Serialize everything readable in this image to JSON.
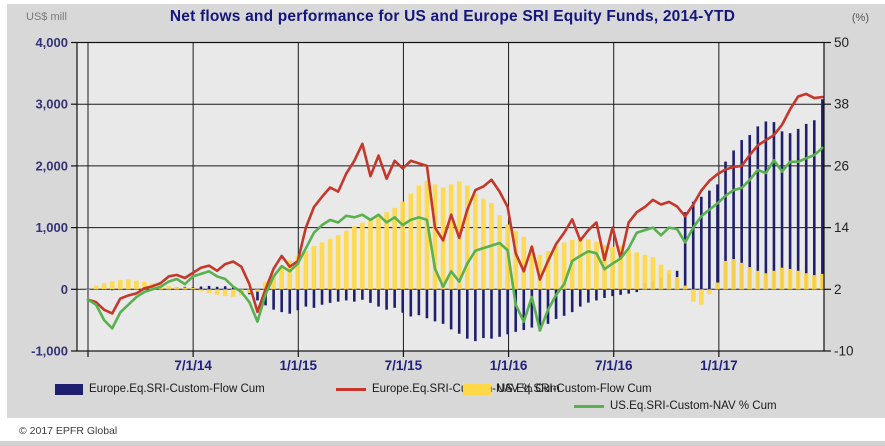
{
  "title": "Net flows and performance for US and Europe SRI Equity Funds, 2014-YTD",
  "footer": "© 2017 EPFR Global",
  "left_axis": {
    "unit": "US$ mill",
    "tick_labels": [
      "4,000",
      "3,000",
      "2,000",
      "1,000",
      "0",
      "-1,000"
    ],
    "tick_values": [
      4000,
      3000,
      2000,
      1000,
      0,
      -1000
    ],
    "range": [
      -1000,
      4000
    ],
    "label_color": "#333375"
  },
  "right_axis": {
    "unit": "(%)",
    "tick_labels": [
      "50",
      "38",
      "26",
      "14",
      "2",
      "-10"
    ],
    "tick_values": [
      50,
      38,
      26,
      14,
      2,
      -10
    ],
    "range": [
      -10,
      50
    ],
    "label_color": "#222222"
  },
  "x_axis": {
    "labels": [
      "7/1/14",
      "1/1/15",
      "7/1/15",
      "1/1/16",
      "7/1/16",
      "1/1/17"
    ],
    "label_month_offsets": [
      6,
      12,
      18,
      24,
      30,
      36
    ],
    "gridline_month_offsets": [
      0,
      6,
      12,
      18,
      24,
      30,
      36
    ],
    "label_color": "#1f1f7e"
  },
  "legend": {
    "items": [
      {
        "label": "Europe.Eq.SRI-Custom-Flow Cum",
        "type": "bar",
        "color": "#1f1f70"
      },
      {
        "label": "Europe.Eq.SRI-Custom-NAV % Cum",
        "type": "line",
        "color": "#c5372b"
      },
      {
        "label": "US.Eq.SRI-Custom-Flow Cum",
        "type": "bar",
        "color": "#ffd84a"
      },
      {
        "label": "US.Eq.SRI-Custom-NAV % Cum",
        "type": "line",
        "color": "#58b04e"
      }
    ]
  },
  "colors": {
    "panel_bg": "#d8d8d8",
    "plot_bg": "#e9e9e9",
    "gridline": "#1a1a1a",
    "europe_flow_bar": "#1f1f70",
    "us_flow_bar": "#ffd84a",
    "europe_nav_line": "#c5372b",
    "us_nav_line": "#58b04e",
    "title_text": "#15157e"
  },
  "chart_data": {
    "type": "bar",
    "subtype": "combo-bar-line-dual-axis",
    "title": "Net flows and performance for US and Europe SRI Equity Funds, 2014-YTD",
    "xlabel": "",
    "ylabel_left": "US$ mill",
    "ylabel_right": "(%)",
    "left_ylim": [
      -1000,
      4000
    ],
    "right_ylim": [
      -10,
      50
    ],
    "grid": true,
    "legend_position": "bottom",
    "x_start_date": "1/1/2014",
    "x_end_date": "7/1/2017",
    "x_step_weeks": 2,
    "x_tick_labels": [
      "7/1/14",
      "1/1/15",
      "7/1/15",
      "1/1/16",
      "7/1/16",
      "1/1/17"
    ],
    "series": [
      {
        "name": "Europe.Eq.SRI-Custom-Flow Cum",
        "type": "bar",
        "axis": "left",
        "units": "US$ mill",
        "color": "#1f1f70",
        "values": [
          0,
          5,
          -10,
          -15,
          10,
          15,
          20,
          10,
          25,
          30,
          20,
          35,
          40,
          30,
          45,
          55,
          40,
          50,
          35,
          -30,
          -80,
          -180,
          -260,
          -330,
          -370,
          -395,
          -340,
          -280,
          -300,
          -250,
          -220,
          -200,
          -180,
          -200,
          -170,
          -220,
          -280,
          -330,
          -300,
          -380,
          -440,
          -420,
          -470,
          -520,
          -560,
          -650,
          -720,
          -800,
          -840,
          -790,
          -800,
          -770,
          -730,
          -690,
          -660,
          -620,
          -680,
          -560,
          -480,
          -430,
          -370,
          -280,
          -215,
          -180,
          -140,
          -110,
          -90,
          -70,
          -45,
          100,
          140,
          190,
          250,
          300,
          1250,
          1420,
          1500,
          1600,
          1700,
          2070,
          2250,
          2420,
          2500,
          2640,
          2720,
          2710,
          2560,
          2530,
          2600,
          2680,
          2740,
          3080
        ]
      },
      {
        "name": "Europe.Eq.SRI-Custom-NAV % Cum",
        "type": "line",
        "axis": "right",
        "units": "%",
        "color": "#c5372b",
        "values": [
          0,
          -0.5,
          -2,
          -2.7,
          0.2,
          0.8,
          1.2,
          2.2,
          2.6,
          3.2,
          4.5,
          4.8,
          4.2,
          5.2,
          6.2,
          6.6,
          5.6,
          6.9,
          7.4,
          6.4,
          3,
          -2.4,
          2,
          6,
          8.5,
          6.4,
          7.5,
          14,
          18,
          20,
          21.8,
          21,
          24.5,
          27,
          30.3,
          24,
          28,
          23.5,
          27,
          25.5,
          27,
          26.5,
          26,
          14,
          11.5,
          16.5,
          12,
          17.5,
          21.3,
          22,
          23.3,
          21,
          18,
          9,
          5.5,
          10.3,
          3.9,
          7.5,
          10.8,
          13,
          15.6,
          11.5,
          13.5,
          15,
          7.7,
          14,
          8,
          15,
          17,
          18,
          19.4,
          18.5,
          19,
          18.1,
          16.2,
          18.5,
          21.2,
          23.1,
          24.4,
          25.3,
          25.8,
          26,
          28.1,
          30,
          31,
          32,
          34,
          37,
          39.5,
          40,
          39.2,
          39.4
        ]
      },
      {
        "name": "US.Eq.SRI-Custom-Flow Cum",
        "type": "bar",
        "axis": "left",
        "units": "US$ mill",
        "color": "#ffd84a",
        "values": [
          0,
          60,
          100,
          130,
          150,
          160,
          140,
          120,
          100,
          80,
          50,
          40,
          30,
          20,
          -30,
          -60,
          -90,
          -110,
          -120,
          -100,
          -60,
          -40,
          120,
          260,
          390,
          470,
          540,
          620,
          700,
          760,
          820,
          880,
          950,
          1020,
          1080,
          1130,
          1180,
          1250,
          1320,
          1420,
          1550,
          1680,
          1760,
          1700,
          1650,
          1700,
          1750,
          1680,
          1550,
          1470,
          1400,
          1200,
          1050,
          950,
          850,
          700,
          560,
          620,
          700,
          760,
          800,
          830,
          810,
          770,
          720,
          690,
          700,
          650,
          600,
          560,
          520,
          400,
          310,
          200,
          60,
          -200,
          -250,
          -80,
          110,
          460,
          490,
          430,
          360,
          300,
          260,
          300,
          350,
          330,
          300,
          260,
          230,
          250
        ]
      },
      {
        "name": "US.Eq.SRI-Custom-NAV % Cum",
        "type": "line",
        "axis": "right",
        "units": "%",
        "color": "#58b04e",
        "values": [
          0,
          -1,
          -4,
          -5.6,
          -2.5,
          -1,
          0.5,
          1.5,
          2,
          2.5,
          3.5,
          4,
          3,
          4.5,
          5,
          5.5,
          4.5,
          4,
          2.5,
          1.5,
          -0.5,
          -4.3,
          1,
          4.5,
          6.5,
          5.5,
          7,
          10,
          13,
          14.5,
          15.5,
          15,
          16.3,
          16,
          16.5,
          15.5,
          16.5,
          15,
          16,
          14.5,
          15.5,
          16,
          15.5,
          6,
          2.5,
          5.5,
          3.5,
          7,
          9.5,
          10,
          10.5,
          11,
          9.6,
          -1,
          -4.3,
          0.5,
          -6,
          -2,
          0.9,
          3,
          7.5,
          8.5,
          9.4,
          9,
          5.9,
          7,
          8,
          10,
          13,
          13.5,
          14,
          12.5,
          14,
          13.7,
          11.1,
          14,
          16.2,
          17.5,
          18.7,
          20.2,
          21.3,
          21.7,
          23.3,
          25.2,
          24.6,
          27.1,
          24.9,
          26.8,
          26.8,
          27.5,
          28.1,
          29.5
        ]
      }
    ]
  }
}
